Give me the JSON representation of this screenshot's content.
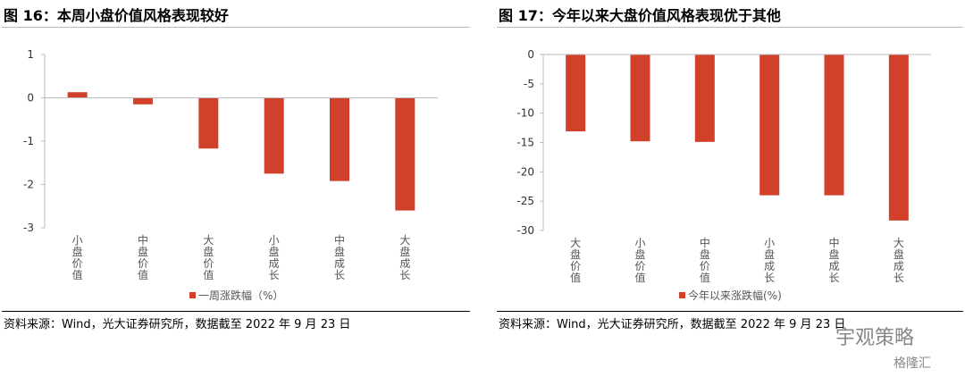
{
  "bar_color": "#d0402a",
  "chart_data": [
    {
      "type": "bar",
      "title": "图 16：本周小盘价值风格表现较好",
      "categories": [
        "小盘价值",
        "中盘价值",
        "大盘价值",
        "小盘成长",
        "中盘成长",
        "大盘成长"
      ],
      "values": [
        0.13,
        -0.15,
        -1.17,
        -1.75,
        -1.92,
        -2.6
      ],
      "series_name": "一周涨跌幅（%）",
      "yticks": [
        1,
        0,
        -1,
        -2,
        -3
      ],
      "ylim": [
        -3,
        1
      ],
      "legend": "bottom",
      "source": "资料来源：Wind，光大证券研究所，数据截至 2022 年 9 月 23 日"
    },
    {
      "type": "bar",
      "title": "图 17：今年以来大盘价值风格表现优于其他",
      "categories": [
        "大盘价值",
        "小盘价值",
        "中盘价值",
        "小盘成长",
        "中盘成长",
        "大盘成长"
      ],
      "values": [
        -13.1,
        -14.8,
        -14.9,
        -24.0,
        -24.0,
        -28.3
      ],
      "series_name": "今年以来涨跌幅(%)",
      "yticks": [
        0,
        -5,
        -10,
        -15,
        -20,
        -25,
        -30
      ],
      "ylim": [
        -30,
        0
      ],
      "legend": "bottom",
      "source": "资料来源：Wind，光大证券研究所，数据截至 2022 年 9 月 23 日"
    }
  ],
  "watermark": {
    "account": "宇观策略",
    "platform": "格隆汇"
  }
}
